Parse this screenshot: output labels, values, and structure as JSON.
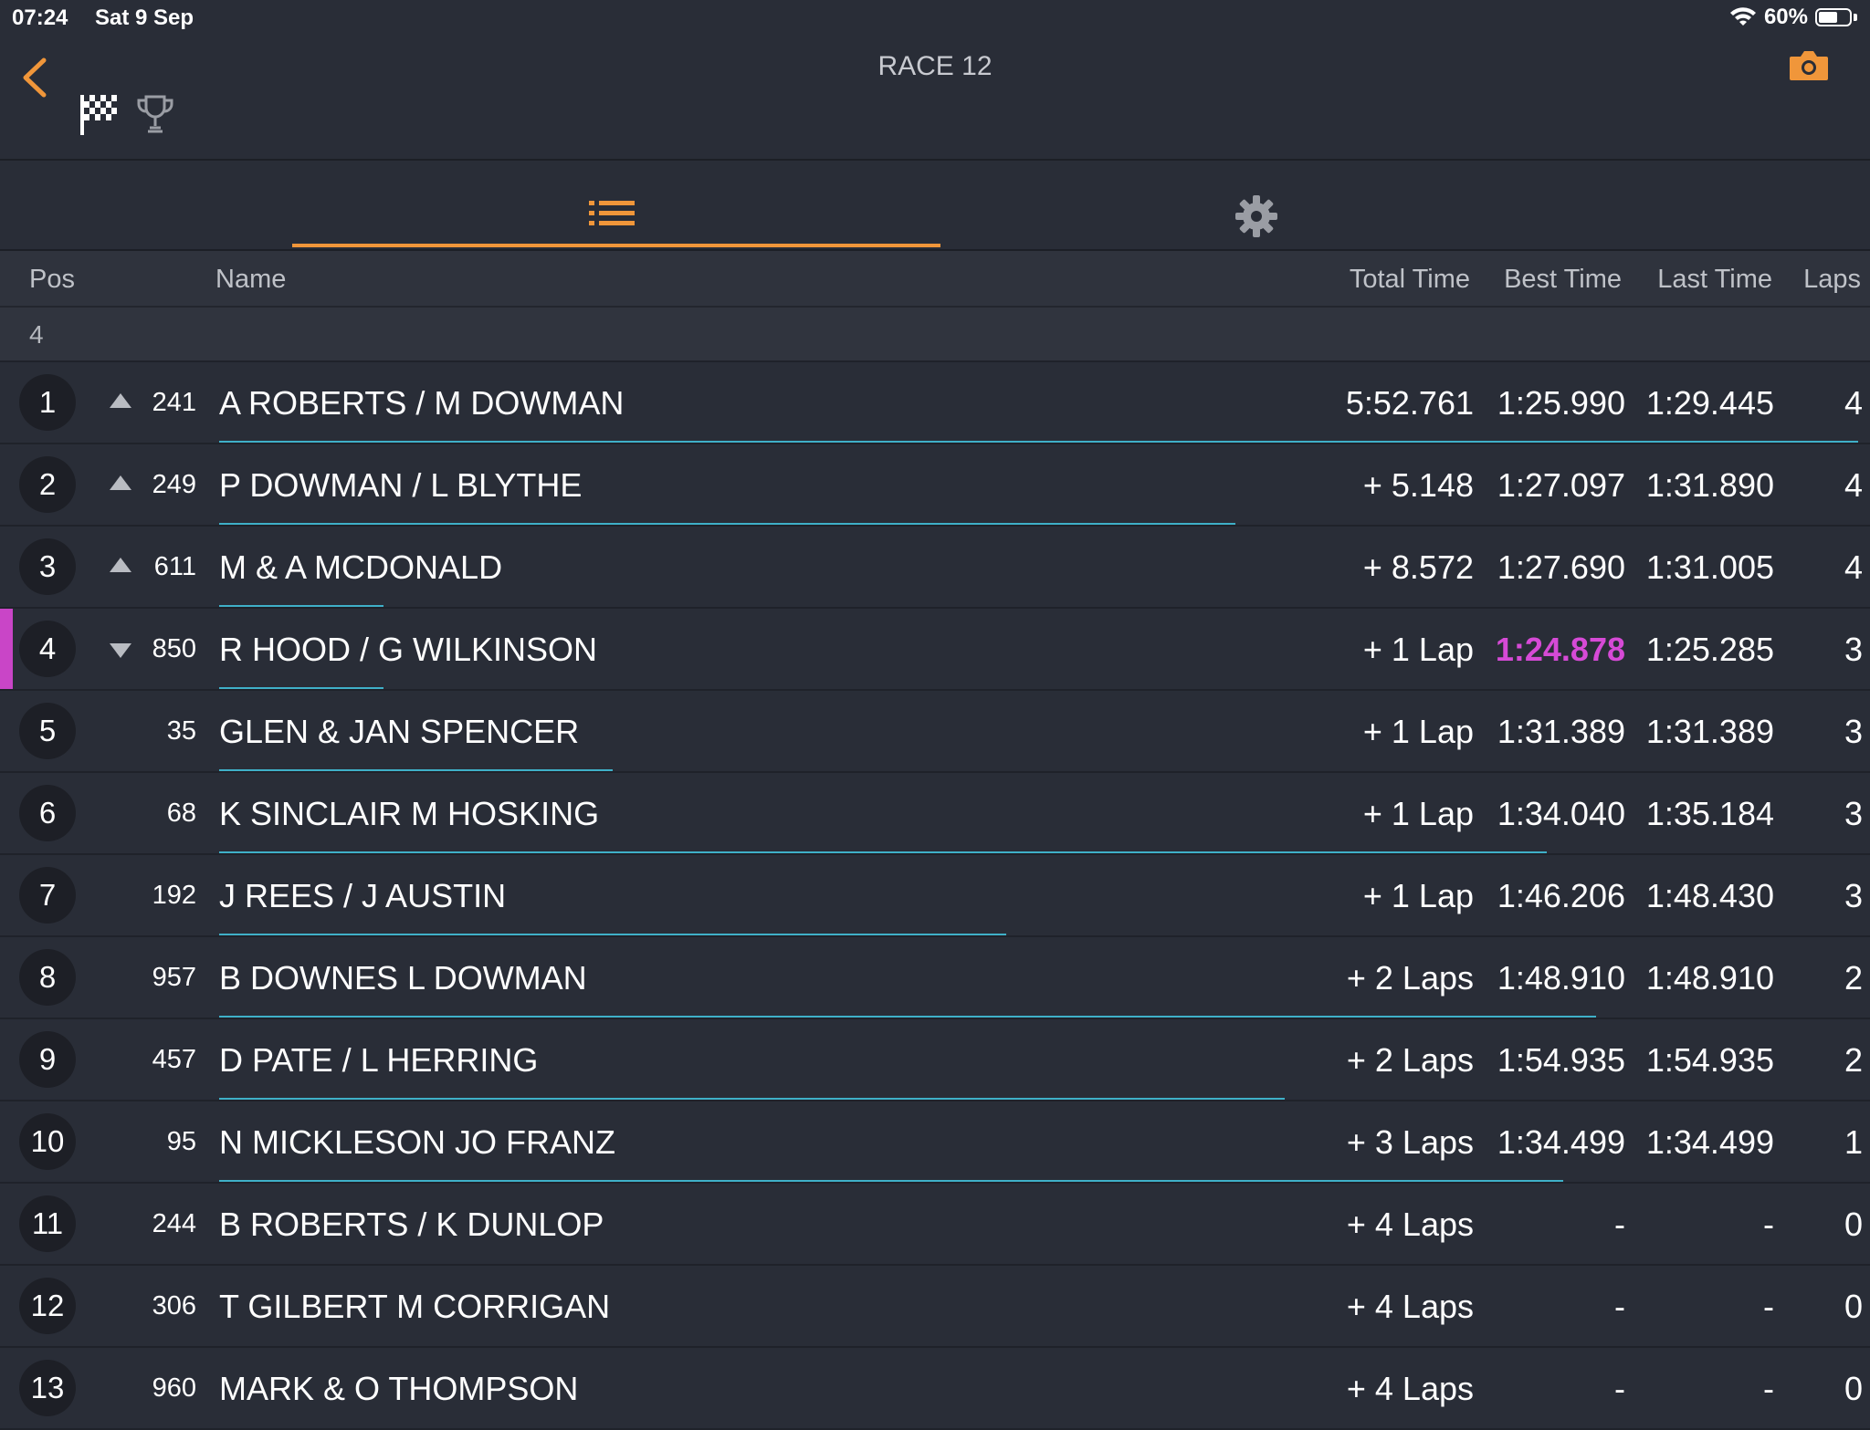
{
  "status_bar": {
    "time": "07:24",
    "date": "Sat 9 Sep",
    "battery": "60%",
    "battery_level": 0.6
  },
  "header": {
    "title": "RACE 12",
    "accent_color": "#f0963a"
  },
  "columns": {
    "pos": "Pos",
    "name": "Name",
    "total": "Total Time",
    "best": "Best Time",
    "last": "Last Time",
    "laps": "Laps"
  },
  "laps_count": "4",
  "rows": [
    {
      "pos": "1",
      "trend": "up",
      "num": "241",
      "name": "A ROBERTS / M DOWMAN",
      "total": "5:52.761",
      "best": "1:25.990",
      "last": "1:29.445",
      "laps": "4",
      "gap_fraction": 1.0
    },
    {
      "pos": "2",
      "trend": "up",
      "num": "249",
      "name": "P DOWMAN / L BLYTHE",
      "total": "+ 5.148",
      "best": "1:27.097",
      "last": "1:31.890",
      "laps": "4",
      "gap_fraction": 0.62
    },
    {
      "pos": "3",
      "trend": "up",
      "num": "611",
      "name": "M & A MCDONALD",
      "total": "+ 8.572",
      "best": "1:27.690",
      "last": "1:31.005",
      "laps": "4",
      "gap_fraction": 0.1
    },
    {
      "pos": "4",
      "trend": "down",
      "num": "850",
      "name": "R HOOD / G WILKINSON",
      "total": "+ 1 Lap",
      "best": "1:24.878",
      "last": "1:25.285",
      "laps": "3",
      "gap_fraction": 0.1,
      "highlight": true
    },
    {
      "pos": "5",
      "trend": "",
      "num": "35",
      "name": "GLEN & JAN SPENCER",
      "total": "+ 1 Lap",
      "best": "1:31.389",
      "last": "1:31.389",
      "laps": "3",
      "gap_fraction": 0.24
    },
    {
      "pos": "6",
      "trend": "",
      "num": "68",
      "name": "K SINCLAIR M HOSKING",
      "total": "+ 1 Lap",
      "best": "1:34.040",
      "last": "1:35.184",
      "laps": "3",
      "gap_fraction": 0.81
    },
    {
      "pos": "7",
      "trend": "",
      "num": "192",
      "name": "J REES / J AUSTIN",
      "total": "+ 1 Lap",
      "best": "1:46.206",
      "last": "1:48.430",
      "laps": "3",
      "gap_fraction": 0.48
    },
    {
      "pos": "8",
      "trend": "",
      "num": "957",
      "name": "B DOWNES L DOWMAN",
      "total": "+ 2 Laps",
      "best": "1:48.910",
      "last": "1:48.910",
      "laps": "2",
      "gap_fraction": 0.84
    },
    {
      "pos": "9",
      "trend": "",
      "num": "457",
      "name": "D PATE / L HERRING",
      "total": "+ 2 Laps",
      "best": "1:54.935",
      "last": "1:54.935",
      "laps": "2",
      "gap_fraction": 0.65
    },
    {
      "pos": "10",
      "trend": "",
      "num": "95",
      "name": "N MICKLESON JO FRANZ",
      "total": "+ 3 Laps",
      "best": "1:34.499",
      "last": "1:34.499",
      "laps": "1",
      "gap_fraction": 0.82
    },
    {
      "pos": "11",
      "trend": "",
      "num": "244",
      "name": "B ROBERTS / K DUNLOP",
      "total": "+ 4 Laps",
      "best": "-",
      "last": "-",
      "laps": "0",
      "gap_fraction": 0
    },
    {
      "pos": "12",
      "trend": "",
      "num": "306",
      "name": "T GILBERT M CORRIGAN",
      "total": "+ 4 Laps",
      "best": "-",
      "last": "-",
      "laps": "0",
      "gap_fraction": 0
    },
    {
      "pos": "13",
      "trend": "",
      "num": "960",
      "name": "MARK & O THOMPSON",
      "total": "+ 4 Laps",
      "best": "-",
      "last": "-",
      "laps": "0",
      "gap_fraction": 0
    }
  ]
}
